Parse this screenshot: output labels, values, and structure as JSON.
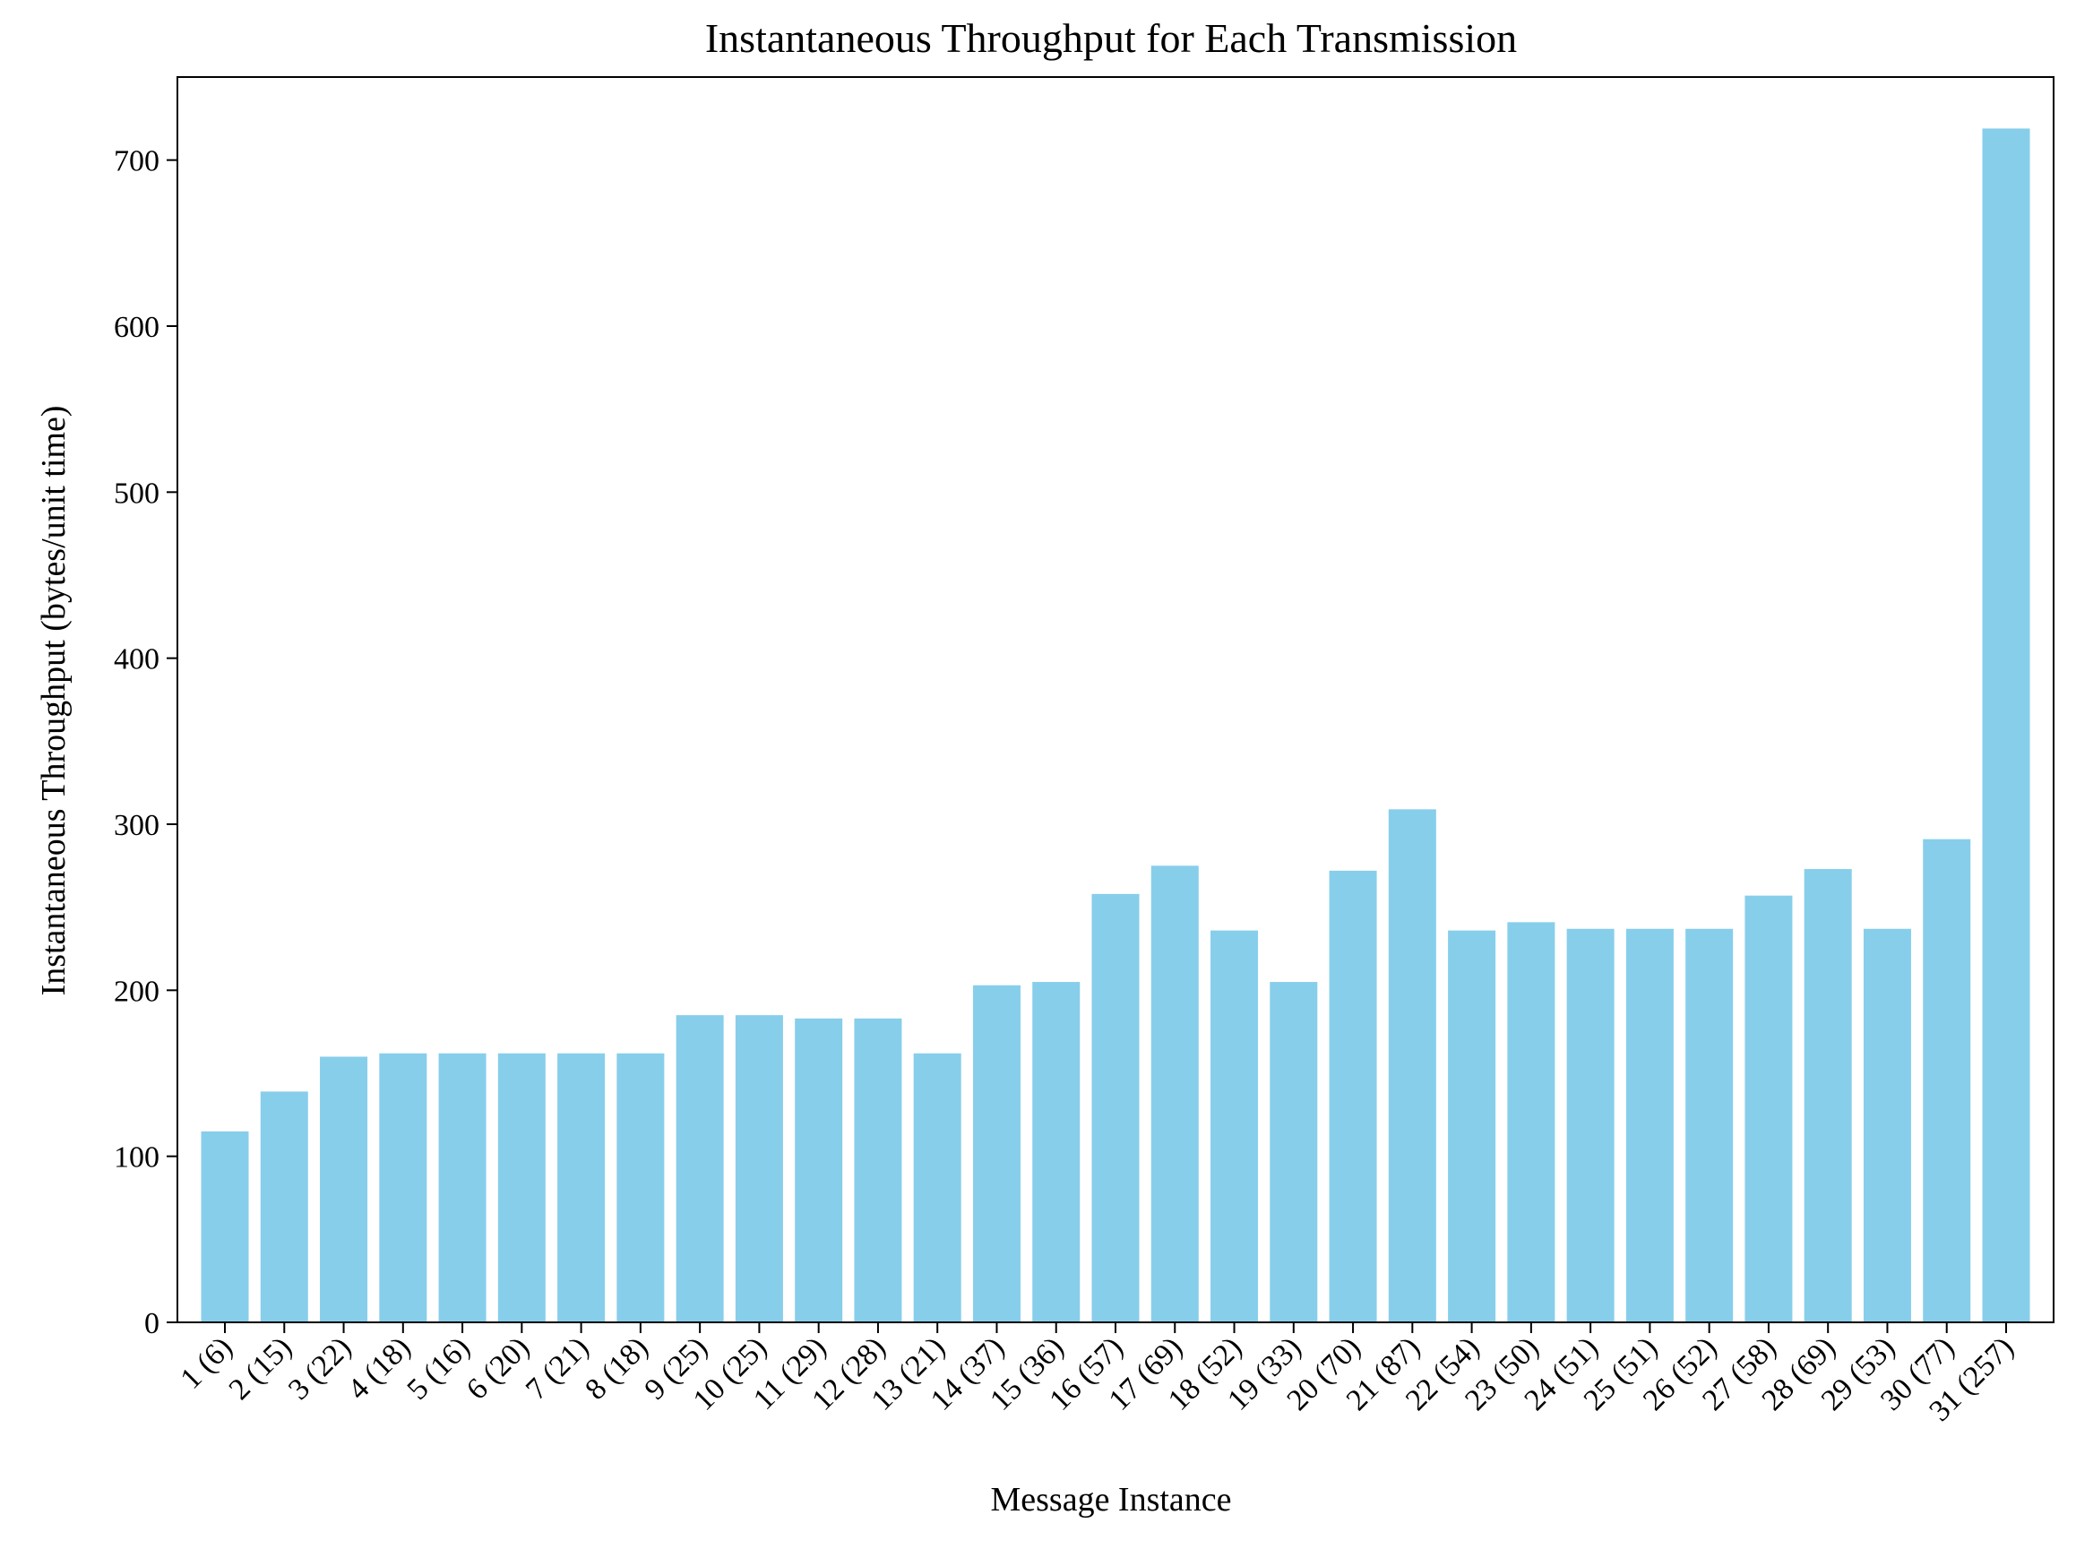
{
  "chart_data": {
    "type": "bar",
    "title": "Instantaneous Throughput for Each Transmission",
    "xlabel": "Message Instance",
    "ylabel": "Instantaneous Throughput (bytes/unit time)",
    "categories": [
      "1 (6)",
      "2 (15)",
      "3 (22)",
      "4 (18)",
      "5 (16)",
      "6 (20)",
      "7 (21)",
      "8 (18)",
      "9 (25)",
      "10 (25)",
      "11 (29)",
      "12 (28)",
      "13 (21)",
      "14 (37)",
      "15 (36)",
      "16 (57)",
      "17 (69)",
      "18 (52)",
      "19 (33)",
      "20 (70)",
      "21 (87)",
      "22 (54)",
      "23 (50)",
      "24 (51)",
      "25 (51)",
      "26 (52)",
      "27 (58)",
      "28 (69)",
      "29 (53)",
      "30 (77)",
      "31 (257)"
    ],
    "values": [
      115,
      139,
      160,
      162,
      162,
      162,
      162,
      162,
      185,
      185,
      183,
      183,
      162,
      203,
      205,
      258,
      275,
      236,
      205,
      272,
      309,
      236,
      241,
      237,
      237,
      237,
      257,
      273,
      237,
      291,
      719
    ],
    "ylim": [
      0,
      750
    ],
    "yticks": [
      0,
      100,
      200,
      300,
      400,
      500,
      600,
      700
    ],
    "bar_color": "#87CEEB",
    "grid": false,
    "legend": "none"
  }
}
